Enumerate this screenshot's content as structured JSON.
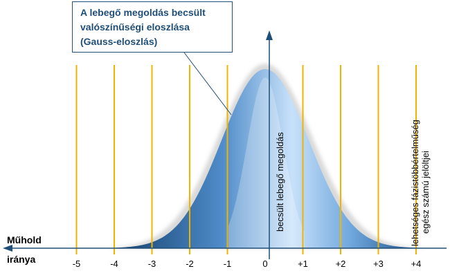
{
  "callout": {
    "lines": [
      "A lebegő megoldás becsült",
      "valószínűségi eloszlása",
      "(Gauss-eloszlás)"
    ]
  },
  "satellite_direction": {
    "line1": "Műhold",
    "line2": "iránya"
  },
  "vertical_labels": {
    "estimate": "becsült lebegő megoldás",
    "candidates_line1": "lehetséges fázistöbbértelműség",
    "candidates_line2": "egész számú jelöltjei"
  },
  "ticks": [
    "-5",
    "-4",
    "-3",
    "-2",
    "-1",
    "0",
    "+1",
    "+2",
    "+3",
    "+4"
  ],
  "colors": {
    "candidate_line": "#f0b400",
    "curve_dark": "#1f4e79",
    "curve_light": "#cfe5fb",
    "axis": "#1f4e79",
    "callout_text": "#1f4e79"
  }
}
